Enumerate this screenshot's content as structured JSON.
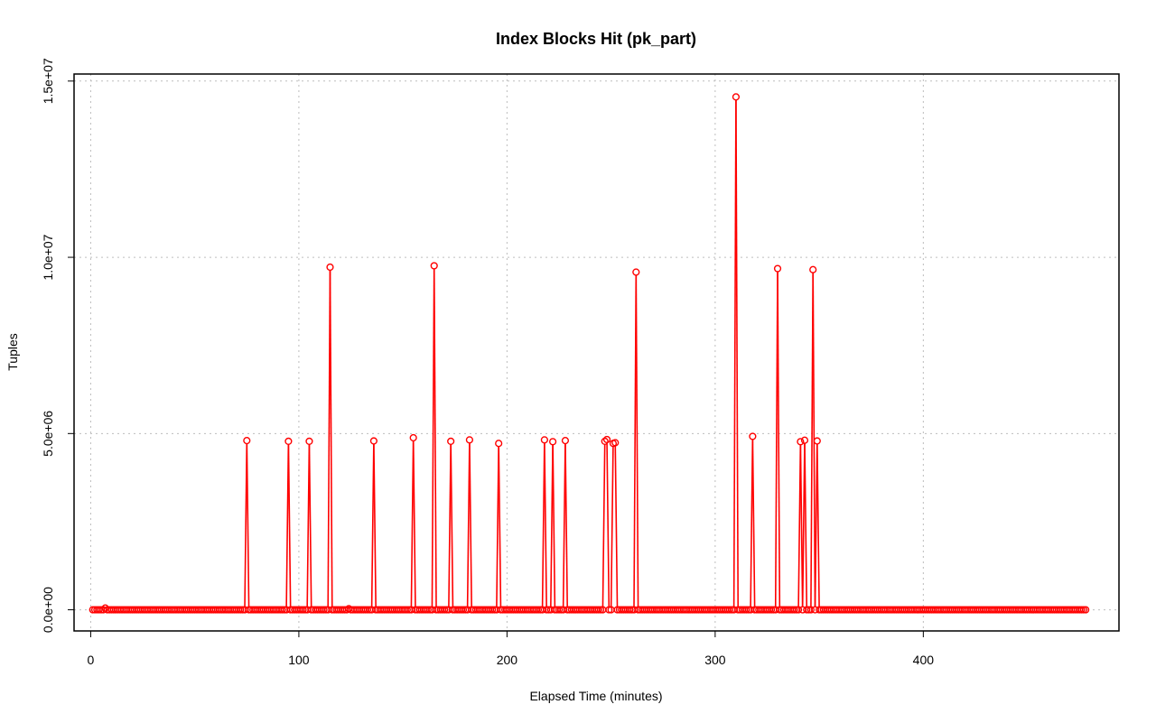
{
  "chart_data": {
    "type": "line",
    "style": "lines with circle points",
    "title": "Index Blocks Hit (pk_part)",
    "xlabel": "Elapsed Time (minutes)",
    "ylabel": "Tuples",
    "xlim": [
      -8,
      494
    ],
    "ylim": [
      -600000,
      15200000
    ],
    "xticks": [
      0,
      100,
      200,
      300,
      400
    ],
    "xtick_labels": [
      "0",
      "100",
      "200",
      "300",
      "400"
    ],
    "yticks": [
      0,
      5000000,
      10000000,
      15000000
    ],
    "ytick_labels": [
      "0.0e+00",
      "5.0e+06",
      "1.0e+07",
      "1.5e+07"
    ],
    "grid": true,
    "series_color": "#ff0000",
    "x_range": [
      1,
      478
    ],
    "baseline_value": 0,
    "peaks": [
      {
        "x": 7,
        "y": 50000
      },
      {
        "x": 75,
        "y": 4800000
      },
      {
        "x": 95,
        "y": 4780000
      },
      {
        "x": 105,
        "y": 4780000
      },
      {
        "x": 115,
        "y": 9720000
      },
      {
        "x": 124,
        "y": 30000
      },
      {
        "x": 136,
        "y": 4790000
      },
      {
        "x": 155,
        "y": 4880000
      },
      {
        "x": 165,
        "y": 9760000
      },
      {
        "x": 173,
        "y": 4780000
      },
      {
        "x": 182,
        "y": 4820000
      },
      {
        "x": 196,
        "y": 4720000
      },
      {
        "x": 218,
        "y": 4820000
      },
      {
        "x": 222,
        "y": 4770000
      },
      {
        "x": 228,
        "y": 4800000
      },
      {
        "x": 247,
        "y": 4780000
      },
      {
        "x": 248,
        "y": 4830000
      },
      {
        "x": 251,
        "y": 4720000
      },
      {
        "x": 252,
        "y": 4740000
      },
      {
        "x": 262,
        "y": 9580000
      },
      {
        "x": 310,
        "y": 14550000
      },
      {
        "x": 318,
        "y": 4920000
      },
      {
        "x": 330,
        "y": 9680000
      },
      {
        "x": 341,
        "y": 4770000
      },
      {
        "x": 343,
        "y": 4810000
      },
      {
        "x": 347,
        "y": 9650000
      },
      {
        "x": 349,
        "y": 4790000
      }
    ]
  }
}
